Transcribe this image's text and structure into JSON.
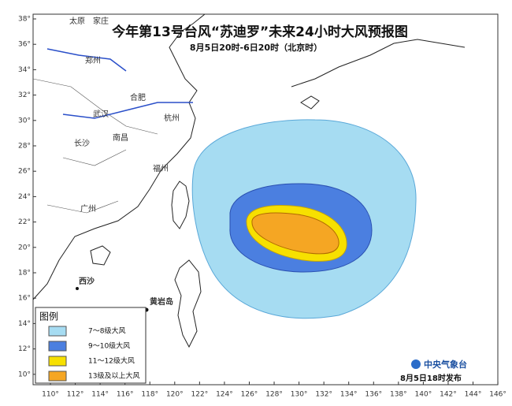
{
  "map": {
    "title": "今年第13号台风“苏迪罗”未来24小时大风预报图",
    "subtitle": "8月5日20时-6日20时（北京时）",
    "lon_ticks": [
      {
        "value": 110,
        "label": "110°"
      },
      {
        "value": 112,
        "label": "112°"
      },
      {
        "value": 114,
        "label": "114°"
      },
      {
        "value": 116,
        "label": "116°"
      },
      {
        "value": 118,
        "label": "118°"
      },
      {
        "value": 120,
        "label": "120°"
      },
      {
        "value": 122,
        "label": "122°"
      },
      {
        "value": 124,
        "label": "124°"
      },
      {
        "value": 126,
        "label": "126°"
      },
      {
        "value": 128,
        "label": "128°"
      },
      {
        "value": 130,
        "label": "130°"
      },
      {
        "value": 132,
        "label": "132°"
      },
      {
        "value": 134,
        "label": "134°"
      },
      {
        "value": 136,
        "label": "136°"
      },
      {
        "value": 138,
        "label": "138°"
      },
      {
        "value": 140,
        "label": "140°"
      },
      {
        "value": 142,
        "label": "142°"
      },
      {
        "value": 144,
        "label": "144°"
      },
      {
        "value": 146,
        "label": "146°"
      }
    ],
    "lat_ticks": [
      {
        "value": 10,
        "label": "10°"
      },
      {
        "value": 12,
        "label": "12°"
      },
      {
        "value": 14,
        "label": "14°"
      },
      {
        "value": 16,
        "label": "16°"
      },
      {
        "value": 18,
        "label": "18°"
      },
      {
        "value": 20,
        "label": "20°"
      },
      {
        "value": 22,
        "label": "22°"
      },
      {
        "value": 24,
        "label": "24°"
      },
      {
        "value": 26,
        "label": "26°"
      },
      {
        "value": 28,
        "label": "28°"
      },
      {
        "value": 30,
        "label": "30°"
      },
      {
        "value": 32,
        "label": "32°"
      },
      {
        "value": 34,
        "label": "34°"
      },
      {
        "value": 36,
        "label": "36°"
      },
      {
        "value": 38,
        "label": "38°"
      }
    ],
    "places": [
      "太原",
      "家庄",
      "郑州",
      "合肥",
      "武汉",
      "杭州",
      "长沙",
      "南昌",
      "福州",
      "广州",
      "西沙",
      "黄岩岛"
    ],
    "legend": {
      "title": "图例",
      "items": [
        {
          "label": "7～8级大风",
          "color": "#a6dcf2"
        },
        {
          "label": "9～10级大风",
          "color": "#4b7fe0"
        },
        {
          "label": "11～12级大风",
          "color": "#f7e000"
        },
        {
          "label": "13级及以上大风",
          "color": "#f5a623"
        }
      ]
    },
    "publisher": "中央气象台",
    "issued": "8月5日18时发布"
  }
}
